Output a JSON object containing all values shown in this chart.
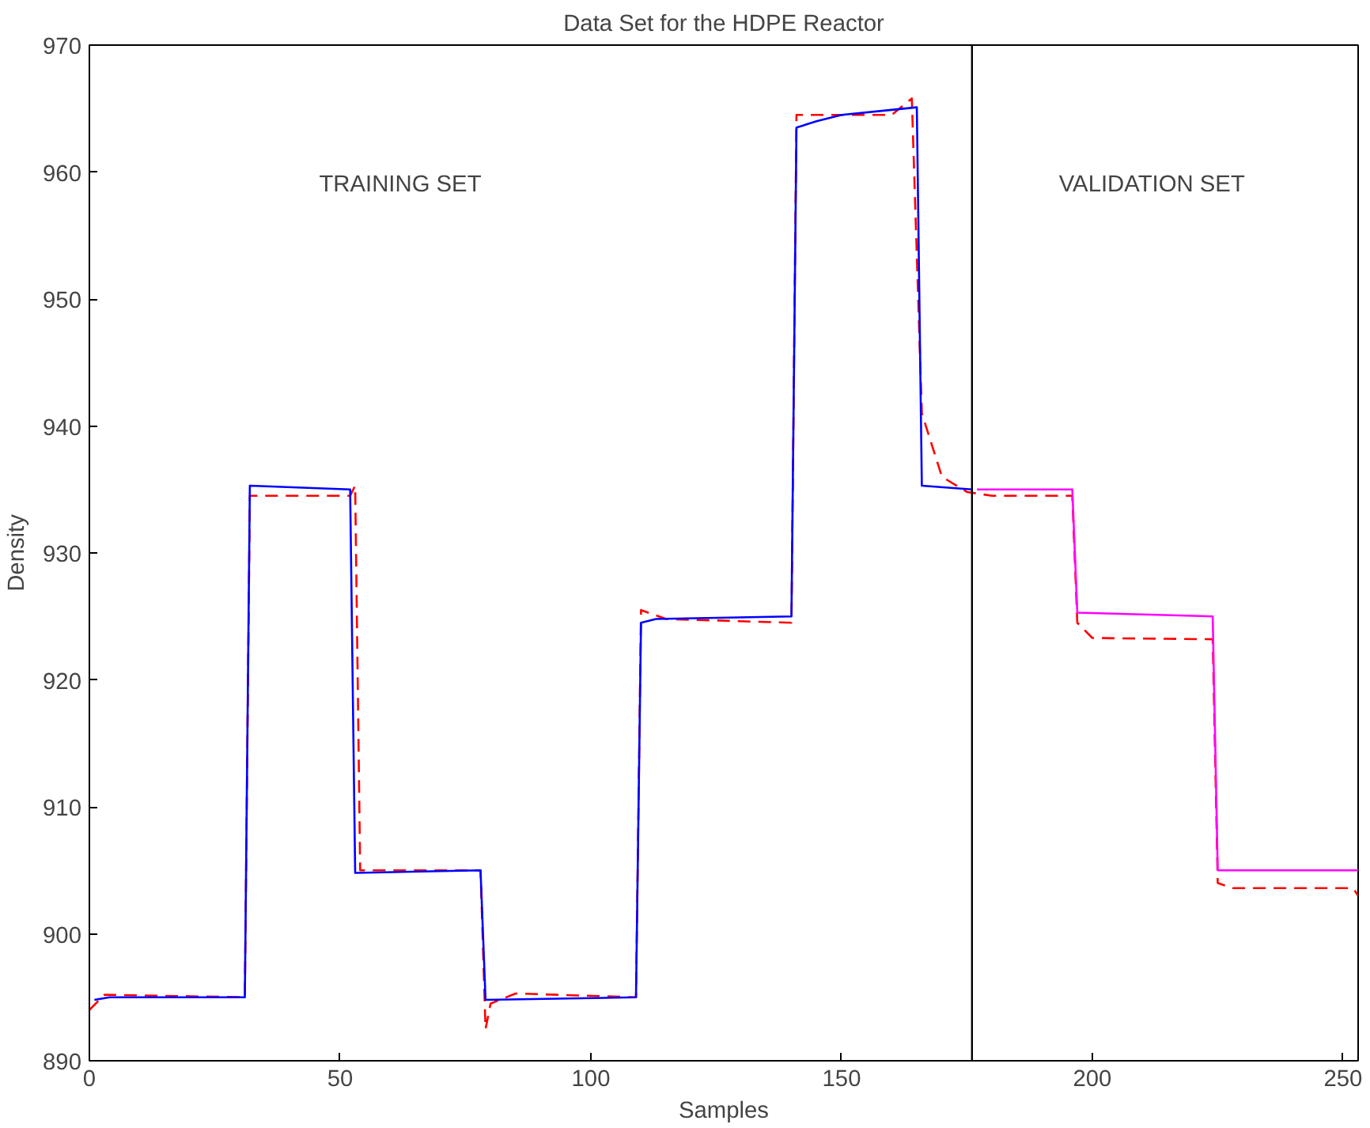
{
  "chart_data": {
    "type": "line",
    "title": "Data Set for the HDPE Reactor",
    "xlabel": "Samples",
    "ylabel": "Density",
    "xlim": [
      0,
      253
    ],
    "ylim": [
      890,
      970
    ],
    "xticks": [
      0,
      50,
      100,
      150,
      200,
      250
    ],
    "yticks": [
      890,
      900,
      910,
      920,
      930,
      940,
      950,
      960,
      970
    ],
    "grid": false,
    "series": [
      {
        "color": "#ff0000",
        "line_style": "dashed",
        "x": [
          0,
          3,
          31,
          32,
          52,
          53,
          54,
          78,
          79,
          80,
          85,
          109,
          110,
          115,
          140,
          141,
          160,
          164,
          166,
          170,
          175,
          180,
          196,
          197,
          200,
          224,
          225,
          228,
          252,
          253
        ],
        "values": [
          894,
          895.2,
          895,
          934.5,
          934.5,
          935.3,
          905,
          905,
          892.5,
          894.5,
          895.3,
          895,
          925.5,
          924.8,
          924.5,
          964.5,
          964.5,
          965.8,
          941,
          936,
          934.8,
          934.5,
          934.5,
          924.5,
          923.3,
          923.2,
          904,
          903.6,
          903.6,
          903
        ]
      },
      {
        "color": "#0000ff",
        "line_style": "solid",
        "x": [
          1,
          4,
          31,
          32,
          52,
          53,
          78,
          79,
          109,
          110,
          113,
          140,
          141,
          145,
          150,
          160,
          165,
          166,
          176
        ],
        "values": [
          894.8,
          895,
          895,
          935.3,
          935,
          904.8,
          905,
          894.8,
          895,
          924.5,
          924.8,
          925,
          963.5,
          964,
          964.5,
          964.9,
          965.1,
          935.3,
          935
        ]
      },
      {
        "color": "#ff00ff",
        "line_style": "solid",
        "x": [
          177,
          196,
          197,
          224,
          225,
          253
        ],
        "values": [
          935,
          935,
          925.3,
          925,
          905,
          905
        ]
      }
    ],
    "ref_lines": [
      {
        "axis": "x",
        "value": 176,
        "color": "#000000",
        "line_style": "solid"
      }
    ],
    "annotations": [
      "TRAINING SET",
      "VALIDATION  SET"
    ]
  }
}
